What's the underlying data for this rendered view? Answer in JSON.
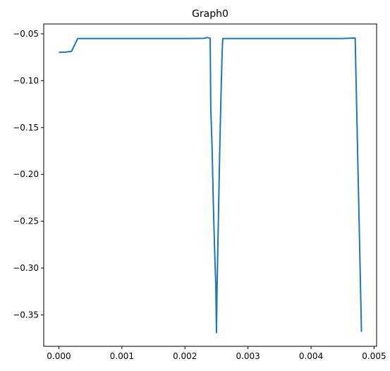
{
  "chart_data": {
    "type": "line",
    "title": "Graph0",
    "xlabel": "",
    "ylabel": "",
    "xlim": [
      -0.00024,
      0.00504
    ],
    "ylim": [
      -0.3835,
      -0.0395
    ],
    "xticks": [
      0.0,
      0.001,
      0.002,
      0.003,
      0.004,
      0.005
    ],
    "xtick_labels": [
      "0.000",
      "0.001",
      "0.002",
      "0.003",
      "0.004",
      "0.005"
    ],
    "yticks": [
      -0.05,
      -0.1,
      -0.15,
      -0.2,
      -0.25,
      -0.3,
      -0.35
    ],
    "ytick_labels": [
      "−0.05",
      "−0.10",
      "−0.15",
      "−0.20",
      "−0.25",
      "−0.30",
      "−0.35"
    ],
    "grid": false,
    "series": [
      {
        "color": "#1f77b4",
        "points": [
          [
            0.0,
            -0.0698
          ],
          [
            0.0001,
            -0.0695
          ],
          [
            0.0002,
            -0.0688
          ],
          [
            0.0003,
            -0.055
          ],
          [
            0.001,
            -0.055
          ],
          [
            0.002,
            -0.055
          ],
          [
            0.0023,
            -0.0548
          ],
          [
            0.00235,
            -0.054
          ],
          [
            0.0024,
            -0.0545
          ],
          [
            0.00241,
            -0.13
          ],
          [
            0.00243,
            -0.17
          ],
          [
            0.00245,
            -0.23
          ],
          [
            0.00247,
            -0.28
          ],
          [
            0.00249,
            -0.32
          ],
          [
            0.0025,
            -0.369
          ],
          [
            0.00251,
            -0.32
          ],
          [
            0.00253,
            -0.25
          ],
          [
            0.00255,
            -0.18
          ],
          [
            0.00257,
            -0.12
          ],
          [
            0.00259,
            -0.07
          ],
          [
            0.0026,
            -0.055
          ],
          [
            0.003,
            -0.055
          ],
          [
            0.004,
            -0.055
          ],
          [
            0.0045,
            -0.055
          ],
          [
            0.0047,
            -0.0545
          ],
          [
            0.0048,
            -0.368
          ]
        ]
      }
    ]
  }
}
